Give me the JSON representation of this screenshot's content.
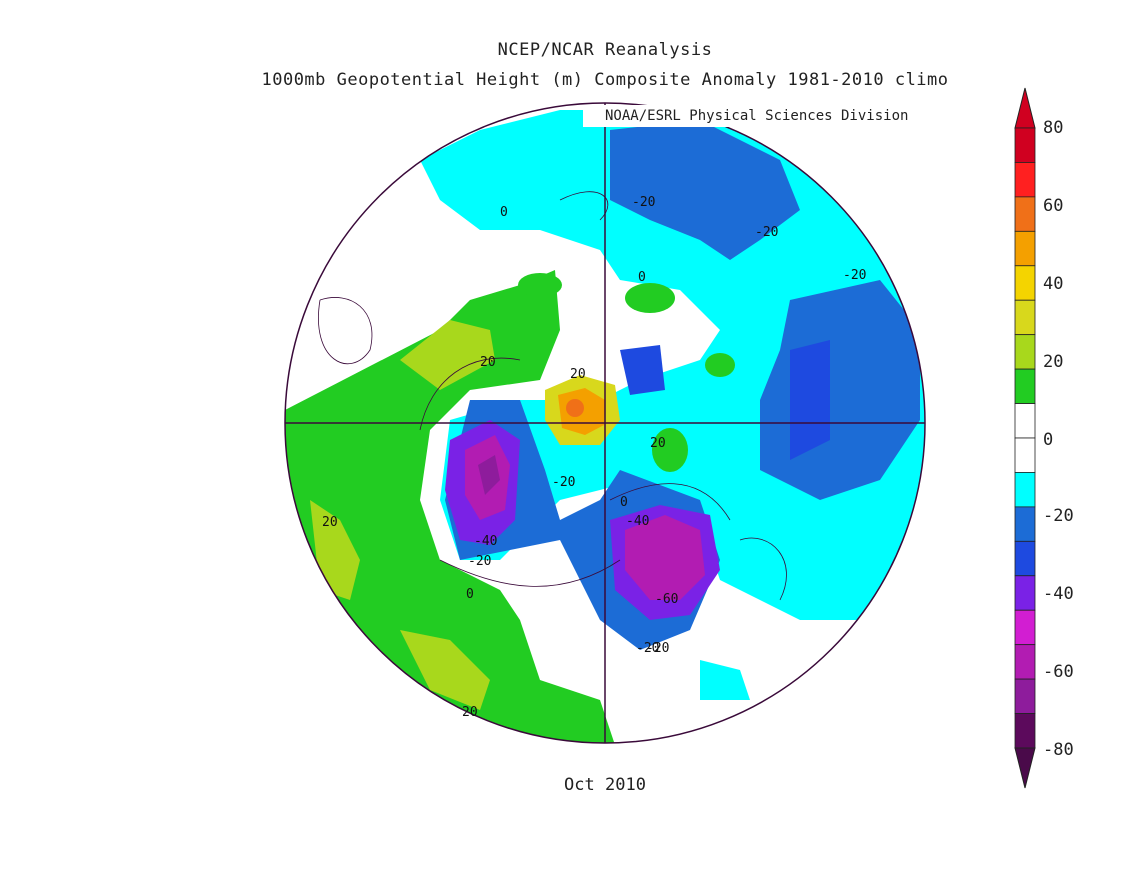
{
  "titles": {
    "line1": "NCEP/NCAR Reanalysis",
    "line2": "1000mb Geopotential Height (m) Composite Anomaly 1981-2010 climo",
    "credit": "NOAA/ESRL Physical Sciences Division",
    "date": "Oct 2010"
  },
  "colorbar": {
    "colors": [
      "#5c0a5c",
      "#8e1c9c",
      "#b21cb2",
      "#d21ed2",
      "#7a22e6",
      "#1e4ae0",
      "#1c6cd6",
      "#00ffff",
      "#ffffff",
      "#ffffff",
      "#22cc22",
      "#a8d81c",
      "#d8d81c",
      "#f4d400",
      "#f4a000",
      "#f07018",
      "#ff2020",
      "#d00020"
    ],
    "labels": [
      "80",
      "60",
      "40",
      "20",
      "0",
      "-20",
      "-40",
      "-60",
      "-80"
    ]
  },
  "contour_labels": [
    "0",
    "-20",
    "-20",
    "-20",
    "0",
    "20",
    "20",
    "-20",
    "0",
    "-40",
    "-20",
    "-40",
    "-20",
    "0",
    "-20",
    "-60",
    "20",
    "20",
    "20"
  ],
  "legend_scale": {
    "ticks": [
      80,
      60,
      40,
      20,
      0,
      -20,
      -40,
      -60,
      -80
    ],
    "units": "m"
  }
}
